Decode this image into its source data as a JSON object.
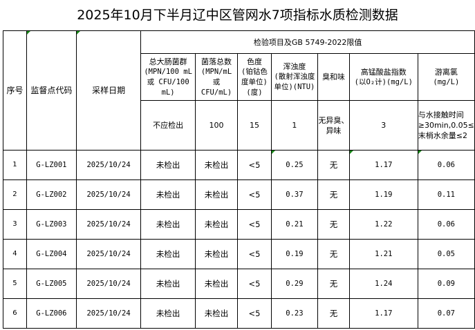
{
  "title": "2025年10月下半月辽中区管网水7项指标水质检测数据",
  "headers": {
    "seq": "序号",
    "code": "监督点代码",
    "date": "采样日期",
    "group": "检验项目及GB 5749-2022限值",
    "items": [
      {
        "name": "总大肠菌群",
        "unit": "(MPN/100 mL 或 CFU/100 mL)",
        "limit": "不应检出"
      },
      {
        "name": "菌落总数",
        "unit": "(MPN/mL 或 CFU/mL)",
        "limit": "100"
      },
      {
        "name": "色度",
        "unit": "(铂钴色度单位)(度)",
        "limit": "15"
      },
      {
        "name": "浑浊度",
        "unit": "(散射浑浊度单位)(NTU)",
        "limit": "1"
      },
      {
        "name": "臭和味",
        "unit": "",
        "limit": "无异臭、异味"
      },
      {
        "name": "高锰酸盐指数",
        "unit": "(以O₂计)(mg/L)",
        "limit": "3"
      },
      {
        "name": "游离氯",
        "unit": "(mg/L)",
        "limit": "与水接触时间≥30min,0.05≤末梢水余量≤2"
      }
    ]
  },
  "rows": [
    [
      "1",
      "G-LZ001",
      "2025/10/24",
      "未检出",
      "未检出",
      "<5",
      "0.25",
      "无",
      "1.17",
      "0.06"
    ],
    [
      "2",
      "G-LZ002",
      "2025/10/24",
      "未检出",
      "未检出",
      "<5",
      "0.37",
      "无",
      "1.19",
      "0.11"
    ],
    [
      "3",
      "G-LZ003",
      "2025/10/24",
      "未检出",
      "未检出",
      "<5",
      "0.21",
      "无",
      "1.22",
      "0.06"
    ],
    [
      "4",
      "G-LZ004",
      "2025/10/24",
      "未检出",
      "未检出",
      "<5",
      "0.19",
      "无",
      "1.21",
      "0.05"
    ],
    [
      "5",
      "G-LZ005",
      "2025/10/24",
      "未检出",
      "未检出",
      "<5",
      "0.29",
      "无",
      "1.24",
      "0.09"
    ],
    [
      "6",
      "G-LZ006",
      "2025/10/24",
      "未检出",
      "未检出",
      "<5",
      "0.23",
      "无",
      "1.17",
      "0.07"
    ]
  ]
}
